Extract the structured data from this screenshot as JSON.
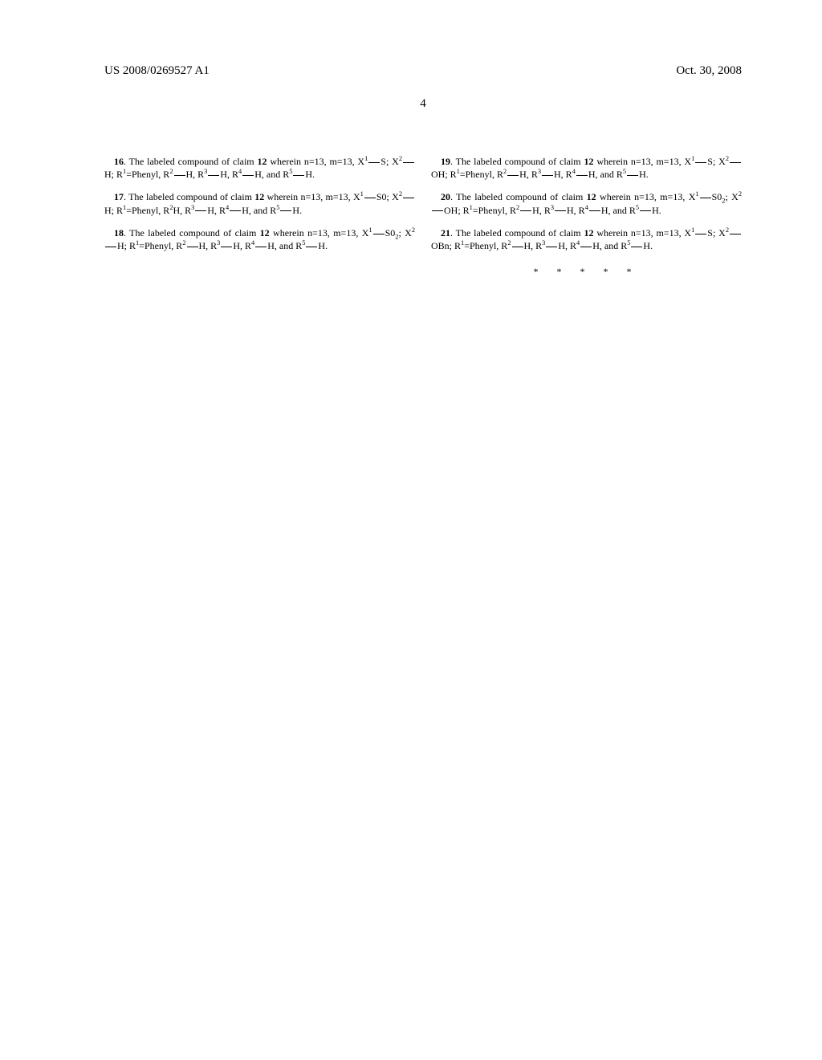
{
  "header": {
    "left": "US 2008/0269527 A1",
    "right": "Oct. 30, 2008",
    "pageNumber": "4"
  },
  "claims": {
    "c16": {
      "num": "16",
      "prefix": ". The labeled compound of claim ",
      "ref": "12",
      "mid": " wherein n=13, m=13, X",
      "x1sup": "1",
      "x1val": "S; X",
      "x2sup": "2",
      "x2val": "H; R",
      "r1sup": "1",
      "r1val": "=Phenyl, R",
      "r2sup": "2",
      "r2val": "H, R",
      "r3sup": "3",
      "r3val": "H, R",
      "r4sup": "4",
      "r4val": "H, and R",
      "r5sup": "5",
      "r5val": "H."
    },
    "c17": {
      "num": "17",
      "prefix": ". The labeled compound of claim ",
      "ref": "12",
      "mid": " wherein n=13, m=13, X",
      "x1sup": "1",
      "x1val": "S0; X",
      "x2sup": "2",
      "x2val": "H; R",
      "r1sup": "1",
      "r1val": "=Phenyl, R",
      "r2sup": "2",
      "r2val": "H, R",
      "r3sup": "3",
      "r3val": "H, R",
      "r4sup": "4",
      "r4val": "H, and R",
      "r5sup": "5",
      "r5val": "H."
    },
    "c18": {
      "num": "18",
      "prefix": ". The labeled compound of claim ",
      "ref": "12",
      "mid": " wherein n=13, m=13, X",
      "x1sup": "1",
      "x1val1": "S0",
      "x1sub": "2",
      "x1val2": "; X",
      "x2sup": "2",
      "x2val": "H; R",
      "r1sup": "1",
      "r1val": "=Phenyl, R",
      "r2sup": "2",
      "r2val": "H, R",
      "r3sup": "3",
      "r3val": "H, R",
      "r4sup": "4",
      "r4val": "H, and R",
      "r5sup": "5",
      "r5val": "H."
    },
    "c19": {
      "num": "19",
      "prefix": ". The labeled compound of claim ",
      "ref": "12",
      "mid": " wherein n=13, m=13, X",
      "x1sup": "1",
      "x1val": "S; X",
      "x2sup": "2",
      "x2val": "OH; R",
      "r1sup": "1",
      "r1val": "=Phenyl, R",
      "r2sup": "2",
      "r2val": "H, R",
      "r3sup": "3",
      "r3val": "H, R",
      "r4sup": "4",
      "r4val": "H, and R",
      "r5sup": "5",
      "r5val": "H."
    },
    "c20": {
      "num": "20",
      "prefix": ". The labeled compound of claim ",
      "ref": "12",
      "mid": " wherein n=13, m=13, X",
      "x1sup": "1",
      "x1val1": "S0",
      "x1sub": "2",
      "x1val2": "; X",
      "x2sup": "2",
      "x2val": "OH; R",
      "r1sup": "1",
      "r1val": "=Phenyl, R",
      "r2sup": "2",
      "r2val": "H, R",
      "r3sup": "3",
      "r3val": "H, R",
      "r4sup": "4",
      "r4val": "H, and R",
      "r5sup": "5",
      "r5val": "H."
    },
    "c21": {
      "num": "21",
      "prefix": ". The labeled compound of claim ",
      "ref": "12",
      "mid": " wherein n=13, m=13, X",
      "x1sup": "1",
      "x1val": "S; X",
      "x2sup": "2",
      "x2val": "OBn; R",
      "r1sup": "1",
      "r1val": "=Phenyl, R",
      "r2sup": "2",
      "r2val": "H, R",
      "r3sup": "3",
      "r3val": "H, R",
      "r4sup": "4",
      "r4val": "H, and R",
      "r5sup": "5",
      "r5val": "H."
    }
  },
  "endStars": "*   *   *   *   *"
}
